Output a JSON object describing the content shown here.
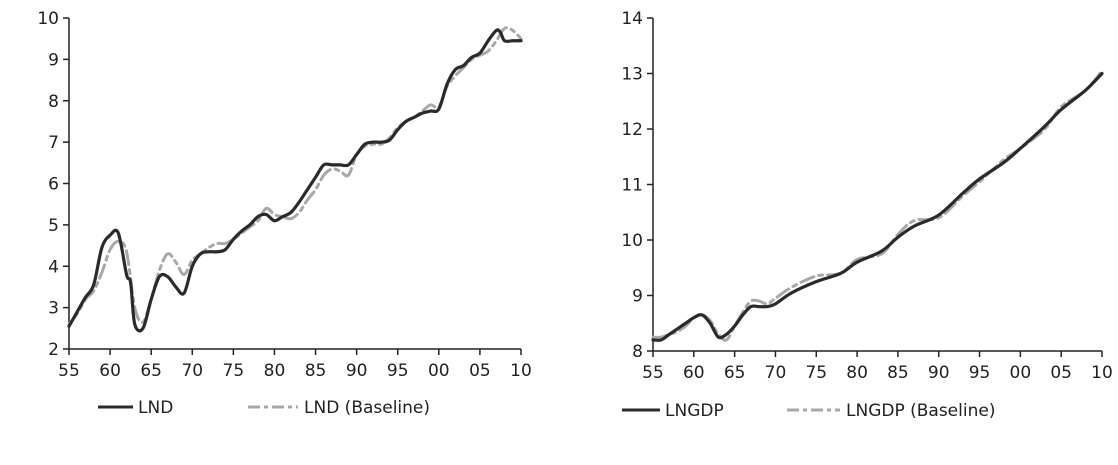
{
  "colors": {
    "actual": "#2a2a2a",
    "baseline": "#a8a8a8",
    "axis": "#222222"
  },
  "chart_data": [
    {
      "type": "line",
      "xlim": [
        1955,
        2010
      ],
      "ylim": [
        2,
        10
      ],
      "xticks": [
        1955,
        1960,
        1965,
        1970,
        1975,
        1980,
        1985,
        1990,
        1995,
        2000,
        2005,
        2010
      ],
      "xtick_labels": [
        "55",
        "60",
        "65",
        "70",
        "75",
        "80",
        "85",
        "90",
        "95",
        "00",
        "05",
        "10"
      ],
      "yticks": [
        2,
        3,
        4,
        5,
        6,
        7,
        8,
        9,
        10
      ],
      "ytick_labels": [
        "2",
        "3",
        "4",
        "5",
        "6",
        "7",
        "8",
        "9",
        "10"
      ],
      "grid": false,
      "legend_position": "bottom",
      "series": [
        {
          "name": "LND",
          "style": "solid",
          "x": [
            1955,
            1956,
            1957,
            1958,
            1959,
            1960,
            1961,
            1962,
            1962.5,
            1963,
            1964,
            1965,
            1966,
            1967,
            1968,
            1969,
            1970,
            1971,
            1972,
            1973,
            1974,
            1975,
            1976,
            1977,
            1978,
            1979,
            1980,
            1981,
            1982,
            1983,
            1984,
            1985,
            1986,
            1987,
            1988,
            1989,
            1990,
            1991,
            1992,
            1993,
            1994,
            1995,
            1996,
            1997,
            1998,
            1999,
            2000,
            2001,
            2002,
            2003,
            2004,
            2005,
            2006,
            2007,
            2007.5,
            2008,
            2009,
            2010
          ],
          "y": [
            2.55,
            2.9,
            3.25,
            3.55,
            4.45,
            4.75,
            4.8,
            3.8,
            3.6,
            2.6,
            2.5,
            3.2,
            3.75,
            3.75,
            3.5,
            3.35,
            4.0,
            4.3,
            4.35,
            4.35,
            4.4,
            4.65,
            4.85,
            5.0,
            5.2,
            5.25,
            5.1,
            5.2,
            5.3,
            5.55,
            5.85,
            6.15,
            6.45,
            6.45,
            6.45,
            6.45,
            6.7,
            6.95,
            7.0,
            7.0,
            7.05,
            7.3,
            7.5,
            7.6,
            7.7,
            7.75,
            7.8,
            8.4,
            8.75,
            8.85,
            9.05,
            9.15,
            9.45,
            9.7,
            9.65,
            9.45,
            9.45,
            9.45
          ]
        },
        {
          "name": "LND (Baseline)",
          "style": "dashed",
          "x": [
            1955,
            1956,
            1957,
            1958,
            1959,
            1960,
            1961,
            1962,
            1963,
            1964,
            1965,
            1966,
            1967,
            1968,
            1969,
            1970,
            1971,
            1972,
            1973,
            1974,
            1975,
            1976,
            1977,
            1978,
            1979,
            1980,
            1981,
            1982,
            1983,
            1984,
            1985,
            1986,
            1987,
            1988,
            1989,
            1990,
            1991,
            1992,
            1993,
            1994,
            1995,
            1996,
            1997,
            1998,
            1999,
            2000,
            2001,
            2002,
            2003,
            2004,
            2005,
            2006,
            2007,
            2008,
            2009,
            2010
          ],
          "y": [
            2.6,
            2.85,
            3.2,
            3.4,
            3.85,
            4.4,
            4.6,
            4.35,
            3.0,
            2.65,
            3.2,
            3.9,
            4.3,
            4.1,
            3.8,
            4.15,
            4.3,
            4.45,
            4.55,
            4.55,
            4.65,
            4.8,
            4.95,
            5.1,
            5.4,
            5.25,
            5.2,
            5.15,
            5.3,
            5.6,
            5.85,
            6.2,
            6.35,
            6.3,
            6.2,
            6.7,
            6.9,
            6.95,
            6.95,
            7.1,
            7.35,
            7.5,
            7.6,
            7.75,
            7.9,
            7.85,
            8.35,
            8.6,
            8.8,
            9.0,
            9.1,
            9.2,
            9.45,
            9.75,
            9.7,
            9.5
          ]
        }
      ]
    },
    {
      "type": "line",
      "xlim": [
        1955,
        2010
      ],
      "ylim": [
        8,
        14
      ],
      "xticks": [
        1955,
        1960,
        1965,
        1970,
        1975,
        1980,
        1985,
        1990,
        1995,
        2000,
        2005,
        2010
      ],
      "xtick_labels": [
        "55",
        "60",
        "65",
        "70",
        "75",
        "80",
        "85",
        "90",
        "95",
        "00",
        "05",
        "10"
      ],
      "yticks": [
        8,
        9,
        10,
        11,
        12,
        13,
        14
      ],
      "ytick_labels": [
        "8",
        "9",
        "10",
        "11",
        "12",
        "13",
        "14"
      ],
      "grid": false,
      "legend_position": "bottom",
      "series": [
        {
          "name": "LNGDP",
          "style": "solid",
          "x": [
            1955,
            1956,
            1957,
            1958,
            1959,
            1960,
            1961,
            1962,
            1963,
            1964,
            1965,
            1966,
            1967,
            1968,
            1969,
            1970,
            1972,
            1975,
            1978,
            1980,
            1983,
            1985,
            1987,
            1990,
            1993,
            1995,
            1998,
            2000,
            2003,
            2005,
            2008,
            2010
          ],
          "y": [
            8.2,
            8.2,
            8.3,
            8.4,
            8.5,
            8.6,
            8.65,
            8.5,
            8.25,
            8.3,
            8.45,
            8.65,
            8.8,
            8.8,
            8.8,
            8.85,
            9.05,
            9.25,
            9.4,
            9.6,
            9.8,
            10.05,
            10.25,
            10.45,
            10.85,
            11.1,
            11.4,
            11.65,
            12.05,
            12.35,
            12.7,
            13.0
          ]
        },
        {
          "name": "LNGDP (Baseline)",
          "style": "dashed",
          "x": [
            1955,
            1956,
            1957,
            1958,
            1959,
            1960,
            1961,
            1962,
            1963,
            1964,
            1965,
            1966,
            1967,
            1968,
            1969,
            1970,
            1972,
            1975,
            1978,
            1980,
            1983,
            1985,
            1987,
            1990,
            1993,
            1995,
            1998,
            2000,
            2003,
            2005,
            2008,
            2010
          ],
          "y": [
            8.25,
            8.25,
            8.3,
            8.35,
            8.45,
            8.6,
            8.65,
            8.55,
            8.3,
            8.2,
            8.45,
            8.7,
            8.9,
            8.9,
            8.85,
            8.95,
            9.15,
            9.35,
            9.4,
            9.65,
            9.75,
            10.1,
            10.35,
            10.4,
            10.8,
            11.05,
            11.45,
            11.65,
            12.0,
            12.4,
            12.7,
            13.05
          ]
        }
      ]
    }
  ]
}
